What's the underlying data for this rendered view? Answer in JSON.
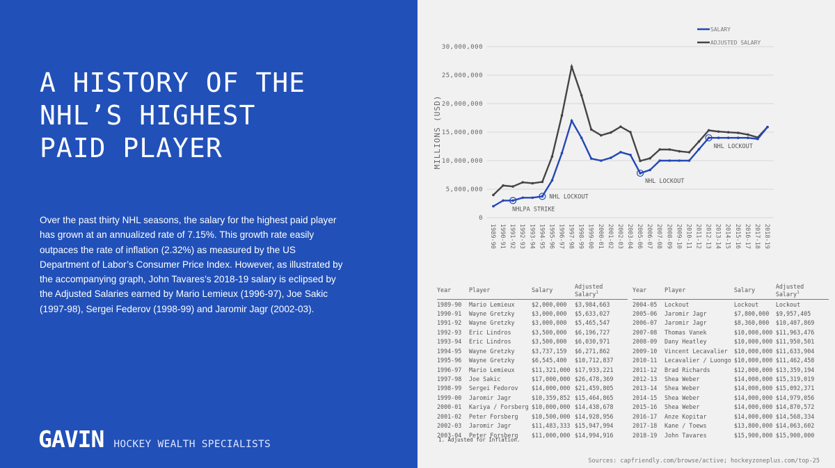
{
  "title_lines": [
    "A HISTORY OF THE",
    "NHL’S HIGHEST",
    "PAID PLAYER"
  ],
  "paragraph": "Over the past thirty NHL seasons, the salary for the highest paid player has grown at an annualized rate of 7.15%. This growth rate easily outpaces the rate of inflation (2.32%) as measured by the US Department of Labor’s Consumer Price Index.  However, as illustrated by the accompanying graph, John Tavares’s 2018-19 salary is eclipsed by the Adjusted Salaries earned by Mario Lemieux (1996-97), Joe Sakic (1997-98), Sergei Federov (1998-99) and Jaromir Jagr (2002-03).",
  "logo": {
    "mark": "GAVIN",
    "tagline": "HOCKEY WEALTH SPECIALISTS"
  },
  "colors": {
    "left_bg": "#2150b8",
    "salary": "#2347b5",
    "adjusted": "#444444"
  },
  "chart_data": {
    "type": "line",
    "ylabel": "MILLIONS (USD)",
    "ylim": [
      0,
      30000000
    ],
    "yticks": [
      0,
      5000000,
      10000000,
      15000000,
      20000000,
      25000000,
      30000000
    ],
    "ytick_labels": [
      "0",
      "5,000,000",
      "10,000,000",
      "15,000,000",
      "20,000,000",
      "25,000,000",
      "30,000,000"
    ],
    "grid": true,
    "legend_position": "top-right",
    "x": [
      "1989-90",
      "1990-91",
      "1991-92",
      "1992-93",
      "1993-94",
      "1994-95",
      "1995-96",
      "1996-97",
      "1997-98",
      "1998-99",
      "1999-00",
      "2000-01",
      "2001-02",
      "2002-03",
      "2003-04",
      "2005-06",
      "2006-07",
      "2007-08",
      "2008-09",
      "2009-10",
      "2010-11",
      "2011-12",
      "2012-13",
      "2013-14",
      "2014-15",
      "2015-16",
      "2016-17",
      "2017-18",
      "2018-19"
    ],
    "series": [
      {
        "name": "SALARY",
        "values": [
          2000000,
          3000000,
          3000000,
          3500000,
          3500000,
          3737159,
          6545400,
          11321000,
          17000000,
          14000000,
          10359852,
          10000000,
          10500000,
          11483333,
          11000000,
          7800000,
          8360000,
          10000000,
          10000000,
          10000000,
          10000000,
          12000000,
          14000000,
          14000000,
          14000000,
          14000000,
          14000000,
          13800000,
          15900000
        ]
      },
      {
        "name": "ADJUSTED SALARY",
        "values": [
          3984663,
          5633027,
          5465547,
          6196727,
          6030971,
          6271862,
          10712837,
          17933221,
          26478369,
          21459805,
          15464865,
          14438678,
          14928956,
          15947994,
          14994916,
          9957405,
          10407869,
          11963476,
          11950501,
          11633904,
          11462458,
          13359194,
          15319019,
          15092371,
          14979056,
          14870572,
          14568334,
          14063602,
          15900000
        ]
      }
    ],
    "annotations": [
      {
        "x": "1991-92",
        "text": "NHLPA STRIKE"
      },
      {
        "x": "1994-95",
        "text": "NHL LOCKOUT"
      },
      {
        "x": "2005-06",
        "text": "NHL LOCKOUT"
      },
      {
        "x": "2012-13",
        "text": "NHL LOCKOUT"
      }
    ]
  },
  "table": {
    "headers": [
      "Year",
      "Player",
      "Salary",
      "Adjusted Salary"
    ],
    "footnote_marker": "1",
    "left_rows": [
      [
        "1989-90",
        "Mario Lemieux",
        "$2,000,000",
        "$3,984,663"
      ],
      [
        "1990-91",
        "Wayne Gretzky",
        "$3,000,000",
        "$5,633,027"
      ],
      [
        "1991-92",
        "Wayne Gretzky",
        "$3,000,000",
        "$5,465,547"
      ],
      [
        "1992-93",
        "Eric Lindros",
        "$3,500,000",
        "$6,196,727"
      ],
      [
        "1993-94",
        "Eric Lindros",
        "$3,500,000",
        "$6,030,971"
      ],
      [
        "1994-95",
        "Wayne Gretzky",
        "$3,737,159",
        "$6,271,862"
      ],
      [
        "1995-96",
        "Wayne Gretzky",
        "$6,545,400",
        "$10,712,837"
      ],
      [
        "1996-97",
        "Mario Lemieux",
        "$11,321,000",
        "$17,933,221"
      ],
      [
        "1997-98",
        "Joe Sakic",
        "$17,000,000",
        "$26,478,369"
      ],
      [
        "1998-99",
        "Sergei Fedorov",
        "$14,000,000",
        "$21,459,805"
      ],
      [
        "1999-00",
        "Jaromir Jagr",
        "$10,359,852",
        "$15,464,865"
      ],
      [
        "2000-01",
        "Kariya / Forsberg",
        "$10,000,000",
        "$14,438,678"
      ],
      [
        "2001-02",
        "Peter Forsberg",
        "$10,500,000",
        "$14,928,956"
      ],
      [
        "2002-03",
        "Jaromir Jagr",
        "$11,483,333",
        "$15,947,994"
      ],
      [
        "2003-04",
        "Peter Forsberg",
        "$11,000,000",
        "$14,994,916"
      ]
    ],
    "right_rows": [
      [
        "2004-05",
        "Lockout",
        "Lockout",
        "Lockout"
      ],
      [
        "2005-06",
        "Jaromir Jagr",
        "$7,800,000",
        "$9,957,405"
      ],
      [
        "2006-07",
        "Jaromir Jagr",
        "$8,360,000",
        "$10,407,869"
      ],
      [
        "2007-08",
        "Thomas Vanek",
        "$10,000,000",
        "$11,963,476"
      ],
      [
        "2008-09",
        "Dany Heatley",
        "$10,000,000",
        "$11,950,501"
      ],
      [
        "2009-10",
        "Vincent Lecavalier",
        "$10,000,000",
        "$11,633,904"
      ],
      [
        "2010-11",
        "Lecavalier / Luongo",
        "$10,000,000",
        "$11,462,458"
      ],
      [
        "2011-12",
        "Brad Richards",
        "$12,000,000",
        "$13,359,194"
      ],
      [
        "2012-13",
        "Shea Weber",
        "$14,000,000",
        "$15,319,019"
      ],
      [
        "2013-14",
        "Shea Weber",
        "$14,000,000",
        "$15,092,371"
      ],
      [
        "2014-15",
        "Shea Weber",
        "$14,000,000",
        "$14,979,056"
      ],
      [
        "2015-16",
        "Shea Weber",
        "$14,000,000",
        "$14,870,572"
      ],
      [
        "2016-17",
        "Anze Kopitar",
        "$14,000,000",
        "$14,568,334"
      ],
      [
        "2017-18",
        "Kane / Toews",
        "$13,800,000",
        "$14,063,602"
      ],
      [
        "2018-19",
        "John Tavares",
        "$15,900,000",
        "$15,900,000"
      ]
    ],
    "footnote": "1. Adjusted for Inflation."
  },
  "sources": "Sources: capfriendly.com/browse/active; hockeyzoneplus.com/top-25"
}
